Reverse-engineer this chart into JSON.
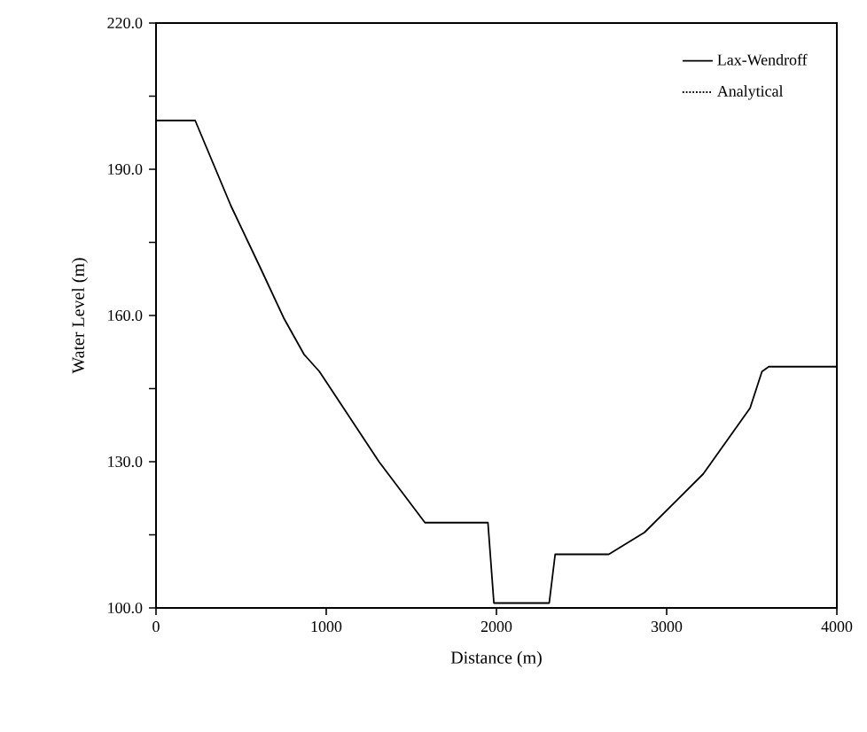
{
  "chart_data": {
    "type": "line",
    "xlabel": "Distance (m)",
    "ylabel": "Water Level (m)",
    "x": [
      0,
      230,
      440,
      610,
      750,
      870,
      960,
      1310,
      1580,
      1950,
      1985,
      2310,
      2345,
      2660,
      2870,
      3215,
      3490,
      3560,
      3600,
      4000
    ],
    "series": [
      {
        "name": "Lax-Wendroff",
        "color": "#000000",
        "line_style": "solid",
        "values": [
          200,
          200,
          182.5,
          170,
          159.5,
          152,
          148.5,
          130,
          117.5,
          117.5,
          101,
          101,
          111,
          111,
          115.5,
          127.5,
          141,
          148.5,
          149.5,
          149.5
        ]
      },
      {
        "name": "Analytical",
        "color": "#000000",
        "line_style": "dotted",
        "values": [
          null,
          null,
          null,
          null,
          null,
          null,
          null,
          null,
          null,
          null,
          null,
          null,
          null,
          null,
          null,
          null,
          null,
          null,
          null,
          null
        ]
      }
    ],
    "xlim": [
      0,
      4000
    ],
    "xticks": [
      0,
      1000,
      2000,
      3000,
      4000
    ],
    "ylim": [
      100,
      220
    ],
    "yticks": [
      {
        "value": 100,
        "label": "100.0"
      },
      {
        "value": 115,
        "label": null
      },
      {
        "value": 130,
        "label": "130.0"
      },
      {
        "value": 145,
        "label": null
      },
      {
        "value": 160,
        "label": "160.0"
      },
      {
        "value": 175,
        "label": null
      },
      {
        "value": 190,
        "label": "190.0"
      },
      {
        "value": 205,
        "label": null
      },
      {
        "value": 220,
        "label": "220.0"
      }
    ],
    "grid": false,
    "legend": "top right",
    "marker": "none"
  }
}
